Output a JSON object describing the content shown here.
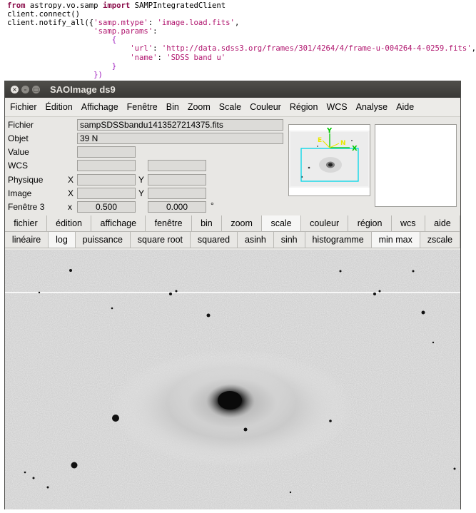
{
  "code_lines": [
    {
      "segments": [
        {
          "t": "from",
          "c": "kw"
        },
        {
          "t": " astropy.vo.samp ",
          "c": ""
        },
        {
          "t": "import",
          "c": "kw"
        },
        {
          "t": " SAMPIntegratedClient",
          "c": ""
        }
      ]
    },
    {
      "segments": [
        {
          "t": "client.connect()",
          "c": ""
        }
      ]
    },
    {
      "segments": [
        {
          "t": "client.notify_all({",
          "c": ""
        },
        {
          "t": "'samp.mtype'",
          "c": "str"
        },
        {
          "t": ": ",
          "c": ""
        },
        {
          "t": "'image.load.fits'",
          "c": "str"
        },
        {
          "t": ",",
          "c": ""
        }
      ]
    },
    {
      "segments": [
        {
          "t": "                   ",
          "c": ""
        },
        {
          "t": "'samp.params'",
          "c": "str"
        },
        {
          "t": ":",
          "c": ""
        }
      ]
    },
    {
      "segments": [
        {
          "t": "                       {",
          "c": "mg"
        }
      ]
    },
    {
      "segments": [
        {
          "t": "                           ",
          "c": ""
        },
        {
          "t": "'url'",
          "c": "str"
        },
        {
          "t": ": ",
          "c": ""
        },
        {
          "t": "'http://data.sdss3.org/frames/301/4264/4/frame-u-004264-4-0259.fits'",
          "c": "str"
        },
        {
          "t": ",",
          "c": ""
        }
      ]
    },
    {
      "segments": [
        {
          "t": "                           ",
          "c": ""
        },
        {
          "t": "'name'",
          "c": "str"
        },
        {
          "t": ": ",
          "c": ""
        },
        {
          "t": "'SDSS band u'",
          "c": "str"
        }
      ]
    },
    {
      "segments": [
        {
          "t": "                       }",
          "c": "mg"
        }
      ]
    },
    {
      "segments": [
        {
          "t": "                   })",
          "c": "mg"
        }
      ]
    }
  ],
  "window": {
    "title": "SAOImage ds9",
    "close_glyph": "×",
    "min_glyph": "–",
    "max_glyph": "□"
  },
  "menu": [
    "Fichier",
    "Édition",
    "Affichage",
    "Fenêtre",
    "Bin",
    "Zoom",
    "Scale",
    "Couleur",
    "Région",
    "WCS",
    "Analyse",
    "Aide"
  ],
  "info": {
    "fichier_label": "Fichier",
    "fichier_value": "sampSDSSbandu1413527214375.fits",
    "objet_label": "Objet",
    "objet_value": "39 N",
    "value_label": "Value",
    "value_value": "",
    "wcs_label": "WCS",
    "physique_label": "Physique",
    "image_label": "Image",
    "fenetre_label": "Fenêtre 3",
    "x_label": "X",
    "y_label": "Y",
    "x_small_label": "x",
    "zoom_value": "0.500",
    "angle_value": "0.000",
    "degree_symbol": "°"
  },
  "panner": {
    "y_label": "Y",
    "x_label": "X",
    "e_label": "E",
    "n_label": "N",
    "accent_cyan": "#00d8e8",
    "accent_green": "#00c800",
    "accent_yellow": "#e8e800"
  },
  "main_buttons": [
    {
      "label": "fichier",
      "active": false
    },
    {
      "label": "édition",
      "active": false
    },
    {
      "label": "affichage",
      "active": false
    },
    {
      "label": "fenêtre",
      "active": false
    },
    {
      "label": "bin",
      "active": false
    },
    {
      "label": "zoom",
      "active": false
    },
    {
      "label": "scale",
      "active": true
    },
    {
      "label": "couleur",
      "active": false
    },
    {
      "label": "région",
      "active": false
    },
    {
      "label": "wcs",
      "active": false
    },
    {
      "label": "aide",
      "active": false
    }
  ],
  "scale_buttons": [
    {
      "label": "linéaire",
      "active": false
    },
    {
      "label": "log",
      "active": true
    },
    {
      "label": "puissance",
      "active": false
    },
    {
      "label": "square root",
      "active": false
    },
    {
      "label": "squared",
      "active": false
    },
    {
      "label": "asinh",
      "active": false
    },
    {
      "label": "sinh",
      "active": false
    },
    {
      "label": "histogramme",
      "active": false
    },
    {
      "label": "min max",
      "active": true
    },
    {
      "label": "zscale",
      "active": false
    }
  ]
}
